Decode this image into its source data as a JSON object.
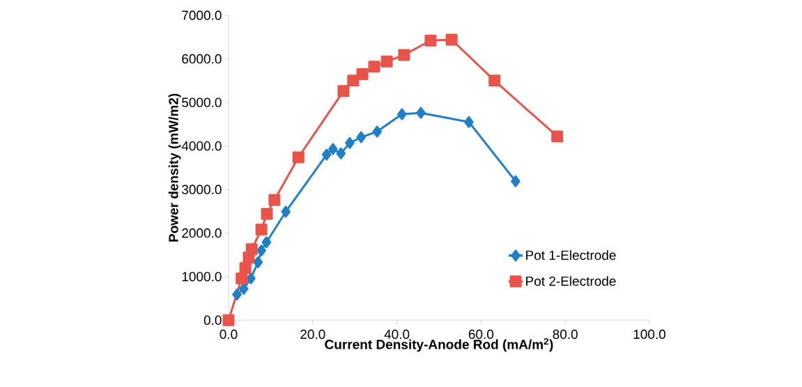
{
  "chart_data": {
    "type": "line",
    "xlabel": "Current Density-Anode Rod (mA/m$^{2}$)",
    "ylabel": "Power density (mW/m2)",
    "xlim": [
      0,
      100
    ],
    "ylim": [
      0,
      7000
    ],
    "xticks": [
      {
        "value": 0,
        "label": "0.0"
      },
      {
        "value": 20,
        "label": "20.0"
      },
      {
        "value": 40,
        "label": "40.0"
      },
      {
        "value": 60,
        "label": "60.0"
      },
      {
        "value": 80,
        "label": "80.0"
      },
      {
        "value": 100,
        "label": "100.0"
      }
    ],
    "yticks": [
      {
        "value": 0,
        "label": "0.0"
      },
      {
        "value": 1000,
        "label": "1000.0"
      },
      {
        "value": 2000,
        "label": "2000.0"
      },
      {
        "value": 3000,
        "label": "3000.0"
      },
      {
        "value": 4000,
        "label": "4000.0"
      },
      {
        "value": 5000,
        "label": "5000.0"
      },
      {
        "value": 6000,
        "label": "6000.0"
      },
      {
        "value": 7000,
        "label": "7000.0"
      }
    ],
    "legend": "bottom right",
    "grid": false,
    "series": [
      {
        "name": "Pot 1-Electrode",
        "color": "#1f7fc8",
        "marker": "diamond",
        "x": [
          2.0,
          3.6,
          5.3,
          7.0,
          7.8,
          9.0,
          13.6,
          23.3,
          24.8,
          26.7,
          28.8,
          31.5,
          35.3,
          41.2,
          45.7,
          57.1,
          68.2
        ],
        "values": [
          590,
          720,
          960,
          1330,
          1600,
          1790,
          2490,
          3800,
          3930,
          3830,
          4070,
          4200,
          4330,
          4730,
          4760,
          4550,
          3190
        ]
      },
      {
        "name": "Pot 2-Electrode",
        "color": "#e8534a",
        "marker": "square",
        "x": [
          0.0,
          3.1,
          4.0,
          4.8,
          5.5,
          7.8,
          9.1,
          10.9,
          16.6,
          27.3,
          29.6,
          31.8,
          34.6,
          37.6,
          41.7,
          48.0,
          53.0,
          63.2,
          78.1
        ],
        "values": [
          0,
          960,
          1200,
          1440,
          1630,
          2080,
          2440,
          2760,
          3740,
          5260,
          5500,
          5650,
          5820,
          5940,
          6090,
          6420,
          6440,
          5500,
          4220
        ]
      }
    ]
  }
}
